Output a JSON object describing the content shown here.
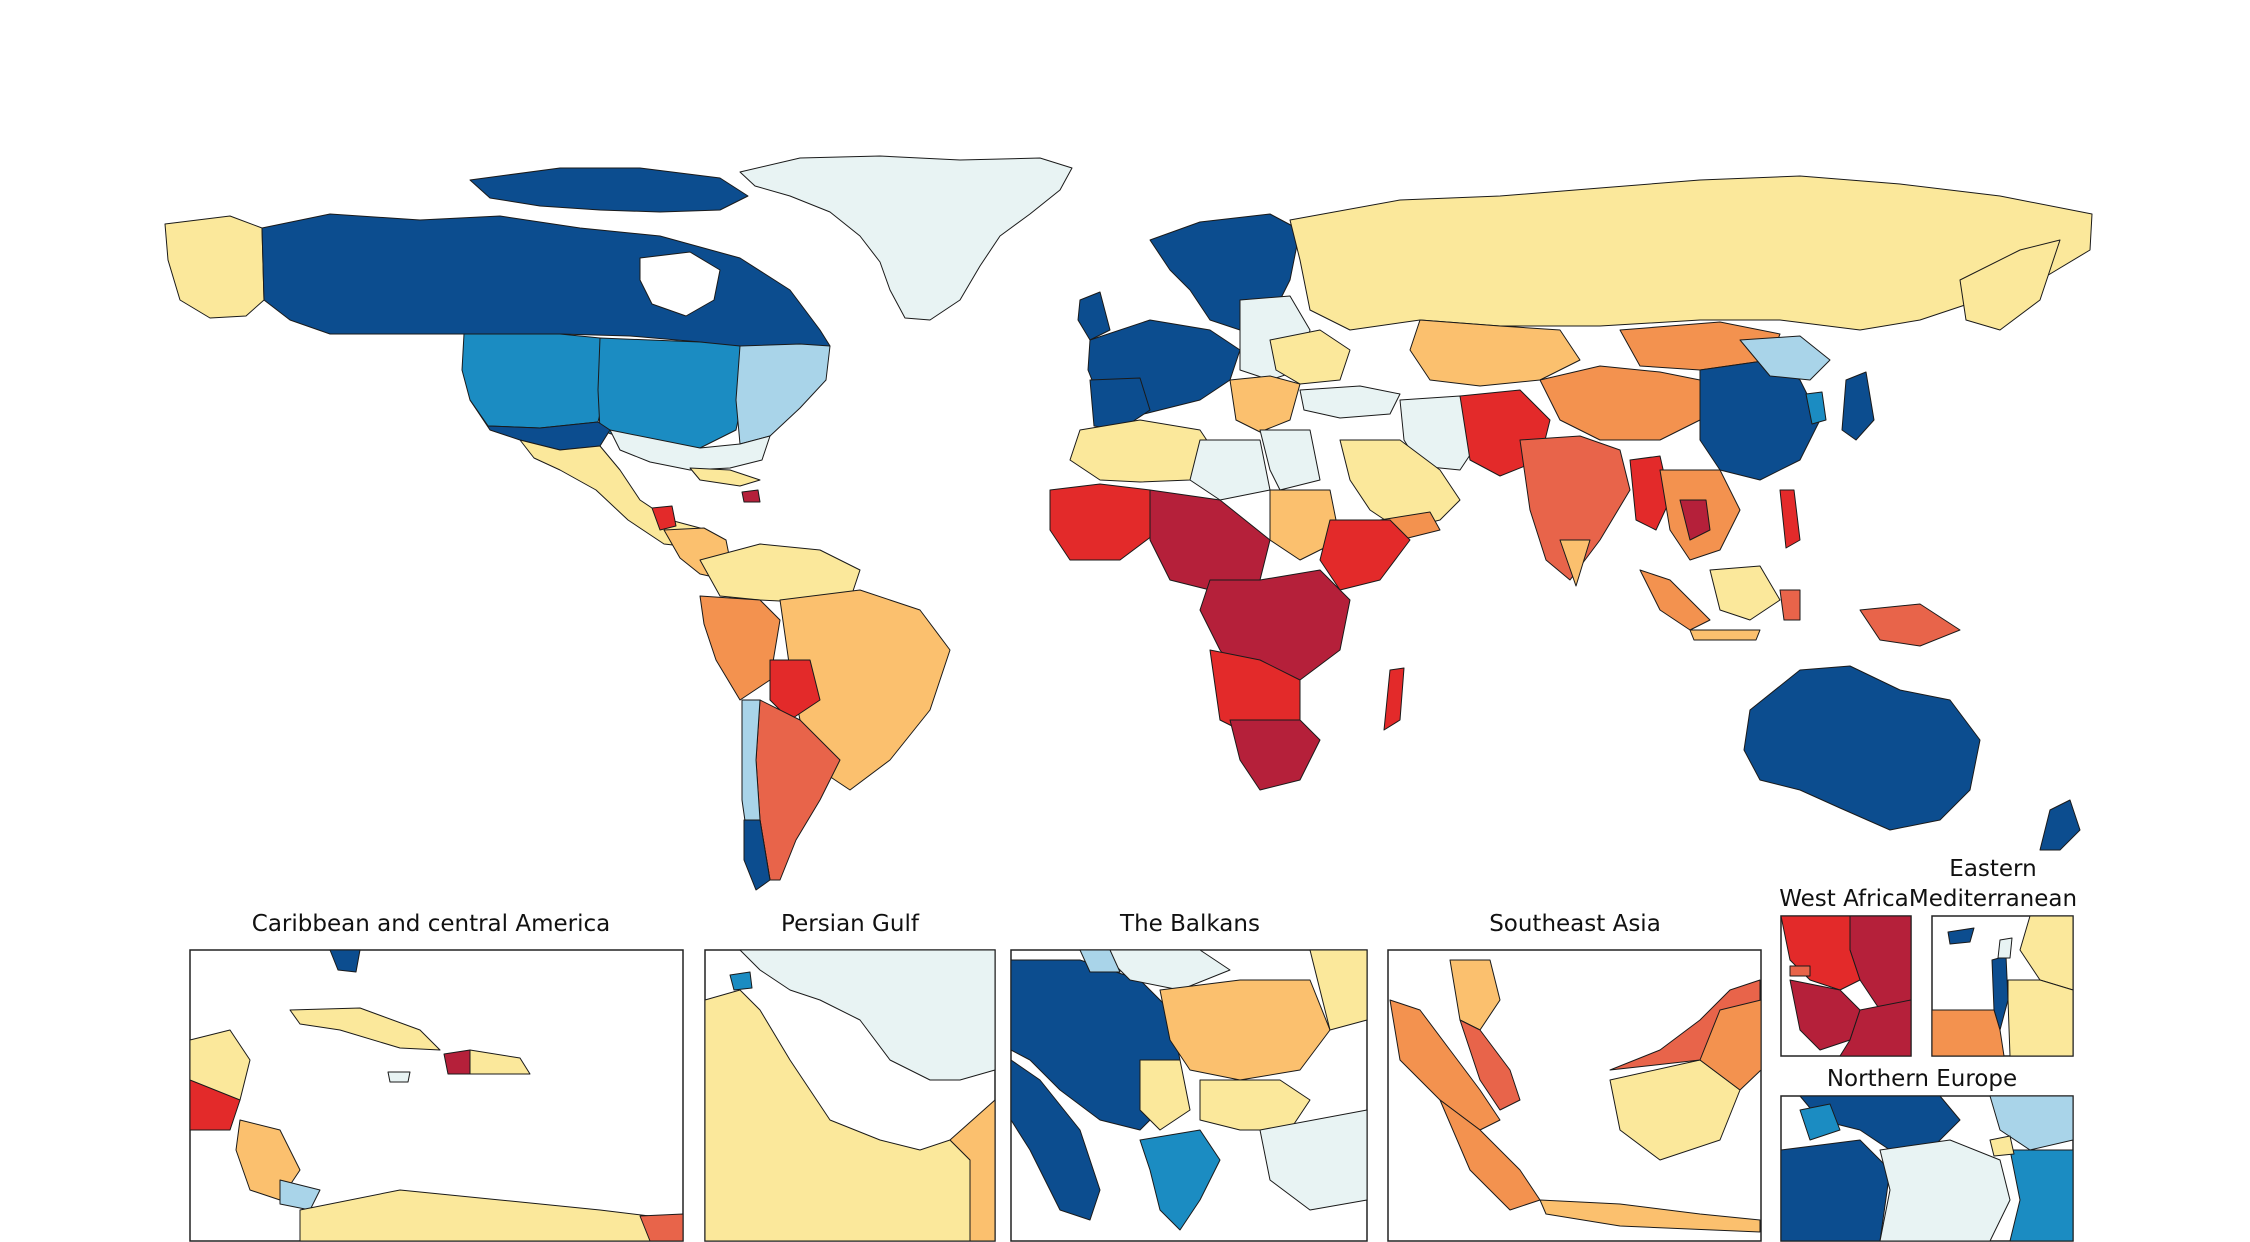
{
  "insets": [
    {
      "id": "caribbean",
      "title": "Caribbean and central America"
    },
    {
      "id": "persian-gulf",
      "title": "Persian Gulf"
    },
    {
      "id": "balkans",
      "title": "The Balkans"
    },
    {
      "id": "southeast-asia",
      "title": "Southeast Asia"
    },
    {
      "id": "west-africa",
      "title": "West Africa"
    },
    {
      "id": "eastern-med",
      "title_line1": "Eastern",
      "title_line2": "Mediterranean"
    },
    {
      "id": "northern-europe",
      "title": "Northern Europe"
    }
  ],
  "colors": {
    "c1": "#0c4d8f",
    "c2": "#1b8cc2",
    "c3": "#a9d4e9",
    "c4": "#e8f3f3",
    "c5": "#fbe89b",
    "c6": "#fbc06e",
    "c7": "#f3924f",
    "c8": "#e8644a",
    "c9": "#e32a2a",
    "c10": "#b5203a"
  }
}
